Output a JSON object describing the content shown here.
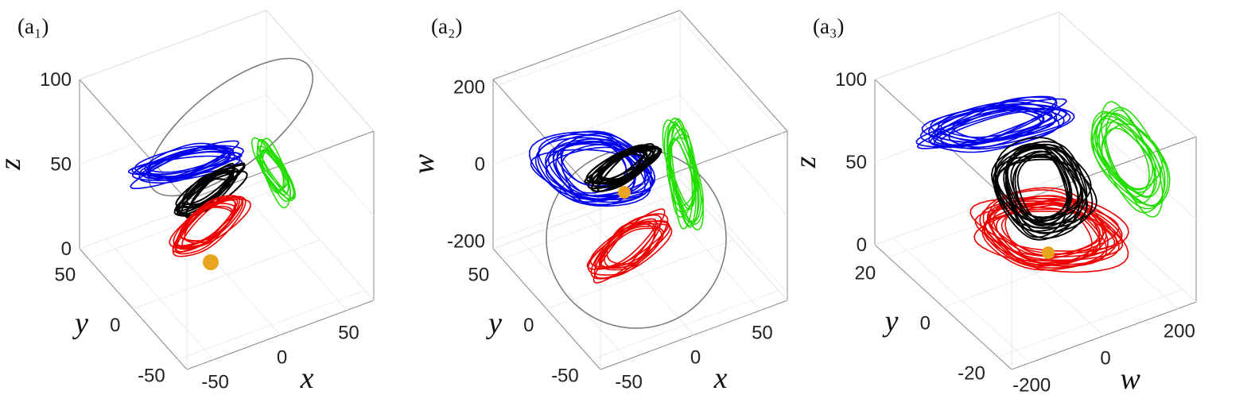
{
  "panels": [
    {
      "label": "(a₁)",
      "axes": {
        "vertical": {
          "label": "z",
          "lim": [
            0,
            100
          ],
          "ticks": [
            0,
            50,
            100
          ]
        },
        "depth": {
          "label": "y",
          "lim": [
            -60,
            60
          ],
          "ticks": [
            -50,
            0,
            50
          ]
        },
        "horizontal": {
          "label": "x",
          "lim": [
            -70,
            70
          ],
          "ticks": [
            -50,
            0,
            50
          ]
        }
      }
    },
    {
      "label": "(a₂)",
      "axes": {
        "vertical": {
          "label": "w",
          "lim": [
            -220,
            220
          ],
          "ticks": [
            -200,
            0,
            200
          ]
        },
        "depth": {
          "label": "y",
          "lim": [
            -60,
            60
          ],
          "ticks": [
            -50,
            0,
            50
          ]
        },
        "horizontal": {
          "label": "x",
          "lim": [
            -70,
            70
          ],
          "ticks": [
            -50,
            0,
            50
          ]
        }
      }
    },
    {
      "label": "(a₃)",
      "axes": {
        "vertical": {
          "label": "z",
          "lim": [
            0,
            100
          ],
          "ticks": [
            0,
            50,
            100
          ]
        },
        "depth": {
          "label": "y",
          "lim": [
            -25,
            25
          ],
          "ticks": [
            -20,
            0,
            20
          ]
        },
        "horizontal": {
          "label": "w",
          "lim": [
            -250,
            250
          ],
          "ticks": [
            -200,
            0,
            200
          ]
        }
      }
    }
  ]
}
